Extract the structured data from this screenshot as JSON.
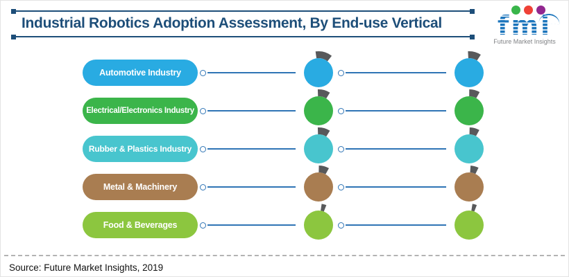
{
  "header": {
    "title": "Industrial Robotics Adoption Assessment, By End-use Vertical"
  },
  "logo": {
    "text": "fmi",
    "tagline": "Future Market Insights",
    "dot_colors": [
      "#39B54A",
      "#EF4136",
      "#92278F"
    ],
    "wordmark_color": "#1C75BC",
    "tagline_color": "#808285"
  },
  "theme": {
    "title_color": "#1D4E79",
    "connector_color": "#2E74B5",
    "stem_color": "#58595B"
  },
  "rows": [
    {
      "label": "Automotive Industry",
      "color": "#29ABE2",
      "gauges": {
        "mid": 46,
        "right": 36
      }
    },
    {
      "label": "Electrical/Electronics Industry",
      "color": "#3BB54A",
      "gauges": {
        "mid": 34,
        "right": 29
      }
    },
    {
      "label": "Rubber & Plastics Industry",
      "color": "#48C5CE",
      "gauges": {
        "mid": 34,
        "right": 27
      }
    },
    {
      "label": "Metal & Machinery",
      "color": "#A97D51",
      "gauges": {
        "mid": 28,
        "right": 22
      }
    },
    {
      "label": "Food & Beverages",
      "color": "#8CC63F",
      "gauges": {
        "mid": 13,
        "right": 12
      }
    }
  ],
  "source": "Source: Future Market Insights, 2019",
  "chart_data": {
    "type": "table",
    "title": "Industrial Robotics Adoption Assessment, By End-use Vertical",
    "categories": [
      "Automotive Industry",
      "Electrical/Electronics Industry",
      "Rubber & Plastics Industry",
      "Metal & Machinery",
      "Food & Beverages"
    ],
    "series": [
      {
        "name": "gauge-column-1",
        "values": [
          46,
          34,
          34,
          28,
          13
        ],
        "unit": "stem-arc-degrees (visual estimate, no numeric labels shown)"
      },
      {
        "name": "gauge-column-2",
        "values": [
          36,
          29,
          27,
          22,
          12
        ],
        "unit": "stem-arc-degrees (visual estimate, no numeric labels shown)"
      }
    ],
    "category_colors": [
      "#29ABE2",
      "#3BB54A",
      "#48C5CE",
      "#A97D51",
      "#8CC63F"
    ],
    "legend_position": "none",
    "grid": false,
    "notes": "Qualitative gauge icons (circle with gray arc cap); larger cap = higher adoption level"
  }
}
